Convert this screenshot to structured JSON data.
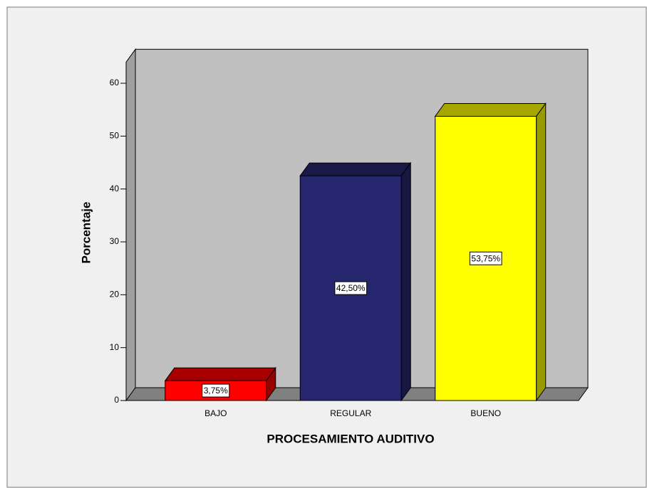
{
  "chart_data": {
    "type": "bar3d",
    "x_label": "PROCESAMIENTO AUDITIVO",
    "y_label": "Porcentaje",
    "categories": [
      "BAJO",
      "REGULAR",
      "BUENO"
    ],
    "values": [
      3.75,
      42.5,
      53.75
    ],
    "value_labels": [
      "3,75%",
      "42,50%",
      "53,75%"
    ],
    "colors": [
      "#ff0000",
      "#26266e",
      "#ffff00"
    ],
    "ylim": [
      0,
      64
    ],
    "yticks": [
      0,
      10,
      20,
      30,
      40,
      50,
      60
    ]
  }
}
